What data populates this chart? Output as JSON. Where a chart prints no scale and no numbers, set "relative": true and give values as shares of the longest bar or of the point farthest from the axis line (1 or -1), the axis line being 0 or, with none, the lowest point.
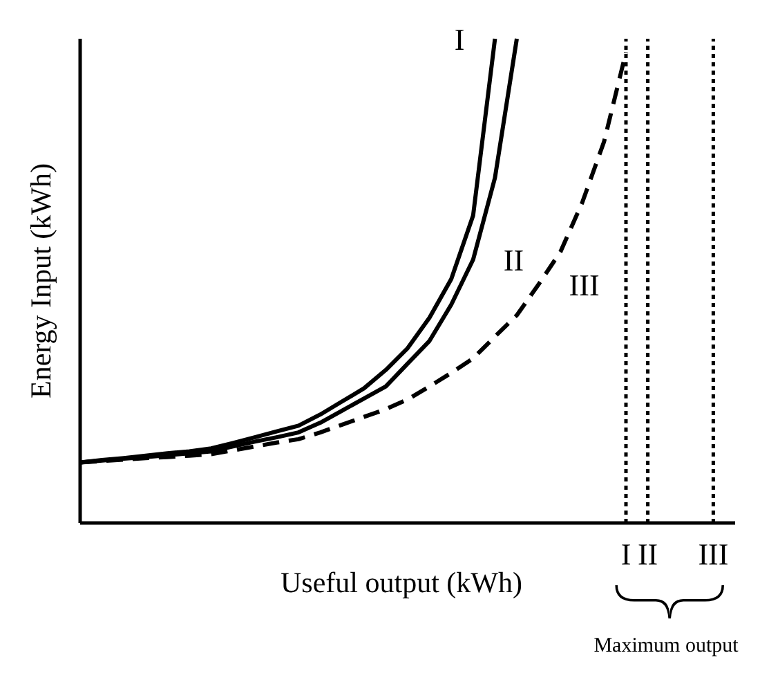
{
  "chart_data": {
    "type": "line",
    "relative": true,
    "xlabel": "Useful output (kWh)",
    "ylabel": "Energy Input (kWh)",
    "grid": false,
    "legend": false,
    "marker": "none",
    "categories": [
      null,
      null,
      null,
      null,
      null,
      null,
      null,
      null,
      null,
      null,
      null,
      null,
      null,
      null,
      null,
      null,
      null,
      null,
      null,
      null,
      null,
      null,
      null,
      null,
      null,
      "I",
      "II",
      null,
      null,
      "III",
      null
    ],
    "series": [
      {
        "name": "I",
        "color": "#000000",
        "line_style": "solid",
        "values": [
          0.125,
          0.13,
          0.134,
          0.139,
          0.144,
          0.148,
          0.154,
          0.165,
          0.177,
          0.189,
          0.201,
          0.224,
          0.251,
          0.278,
          0.316,
          0.361,
          0.424,
          0.504,
          0.635,
          1.0,
          null,
          null,
          null,
          null,
          null,
          null,
          null,
          null,
          null,
          null,
          null
        ]
      },
      {
        "name": "II",
        "color": "#000000",
        "line_style": "solid",
        "values": [
          0.125,
          0.129,
          0.133,
          0.136,
          0.14,
          0.144,
          0.148,
          0.158,
          0.168,
          0.177,
          0.187,
          0.207,
          0.232,
          0.257,
          0.282,
          0.329,
          0.376,
          0.451,
          0.544,
          0.713,
          1.0,
          null,
          null,
          null,
          null,
          null,
          null,
          null,
          null,
          null,
          null
        ]
      },
      {
        "name": "III",
        "color": "#000000",
        "line_style": "dashed",
        "values": [
          0.125,
          0.128,
          0.131,
          0.134,
          0.136,
          0.139,
          0.142,
          0.15,
          0.158,
          0.166,
          0.173,
          0.187,
          0.203,
          0.219,
          0.235,
          0.255,
          0.282,
          0.31,
          0.34,
          0.385,
          0.429,
          0.493,
          0.56,
          0.662,
          0.788,
          0.972,
          null,
          null,
          null,
          null,
          null
        ]
      }
    ],
    "ref_lines": [
      {
        "axis": "x",
        "value": "I",
        "color": "#000000",
        "line_style": "dotted"
      },
      {
        "axis": "x",
        "value": "II",
        "color": "#000000",
        "line_style": "dotted"
      },
      {
        "axis": "x",
        "value": "III",
        "color": "#000000",
        "line_style": "dotted"
      }
    ],
    "annotations": [
      "Maximum output"
    ]
  }
}
